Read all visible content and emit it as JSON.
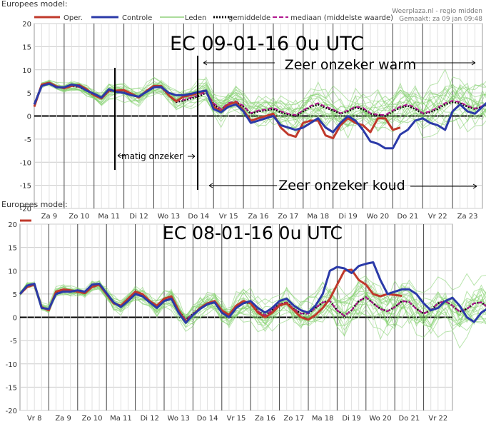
{
  "header": {
    "model_label": "Europees model:",
    "source": "Weerplaza.nl - regio midden",
    "made": "Gemaakt: za 09 jan 09:48"
  },
  "legend": [
    {
      "name": "Oper.",
      "color": "#c0392b",
      "style": "solid"
    },
    {
      "name": "Controle",
      "color": "#2b3aa8",
      "style": "solid"
    },
    {
      "name": "Leden",
      "color": "#8fd07a",
      "style": "thin"
    },
    {
      "name": "gemiddelde",
      "color": "#000000",
      "style": "dotted"
    },
    {
      "name": "mediaan (middelste waarde)",
      "color": "#b0188f",
      "style": "dashed"
    }
  ],
  "annotations": {
    "run_top": "EC 09-01-16 0u UTC",
    "run_bottom": "EC 08-01-16 0u UTC",
    "warm": "Zeer onzeker warm",
    "cold": "Zeer onzeker koud",
    "matig": "matig onzeker",
    "bottom_panel_label": "Europees model:"
  },
  "colors": {
    "oper": "#c0392b",
    "controle": "#2b3aa8",
    "leden": "#7fcf6a",
    "mean": "#000000",
    "median": "#b0188f",
    "grid": "#cccccc"
  },
  "chart_data": [
    {
      "type": "line",
      "title": "EC 09-01-16 0u UTC",
      "ylim": [
        -20,
        20
      ],
      "yticks": [
        20,
        15,
        10,
        5,
        0,
        -5,
        -10,
        -15,
        -20
      ],
      "x_labels": [
        "Za 9",
        "Zo 10",
        "Ma 11",
        "Di 12",
        "Wo 13",
        "Do 14",
        "Vr 15",
        "Za 16",
        "Zo 17",
        "Ma 18",
        "Di 19",
        "Wo 20",
        "Do 21",
        "Vr 22",
        "Za 23"
      ],
      "steps": 60,
      "series": [
        {
          "name": "Oper.",
          "values": [
            2,
            6.8,
            7.2,
            6.4,
            6,
            6.5,
            6.7,
            5.8,
            4.5,
            3.8,
            5.5,
            5.5,
            5.6,
            4.8,
            4,
            5.4,
            6.5,
            6.5,
            4.5,
            3.2,
            4.2,
            4.5,
            5,
            5.5,
            2,
            1,
            2.5,
            3,
            1.2,
            -1,
            -0.5,
            0,
            0.5,
            -2.5,
            -4,
            -4.5,
            -1.5,
            -1,
            -1,
            -4.2,
            -4.8,
            -2,
            -0.5,
            -1.5,
            -2,
            -3.5,
            -0.5,
            -0.5,
            -3,
            -2.5
          ]
        },
        {
          "name": "Controle",
          "values": [
            2.5,
            6.5,
            7,
            6.2,
            6.2,
            6.8,
            6.5,
            5.5,
            4.8,
            4,
            5.8,
            5.2,
            5,
            4.5,
            4.2,
            5.2,
            6.2,
            6.3,
            5,
            4.5,
            4.5,
            4.8,
            5.2,
            5.5,
            1.5,
            0.8,
            2,
            2.5,
            1,
            -1.5,
            -1,
            -0.5,
            0,
            -2,
            -2.5,
            -3,
            -2.5,
            -1.5,
            -0.5,
            -2.5,
            -3.5,
            -1.5,
            0,
            -1,
            -3,
            -5.5,
            -6,
            -7,
            -7,
            -4,
            -3,
            -1,
            -0.5,
            -1.5,
            -2,
            -3,
            1,
            2.5,
            1,
            0.5,
            2,
            3.5,
            2.5,
            1,
            2,
            4,
            5,
            4.5,
            2,
            0.5,
            1,
            2.5,
            3.5,
            1.5,
            -3.5,
            -5.5,
            -1,
            -1.2,
            -1,
            1.2,
            4,
            5.5,
            6,
            5,
            3,
            2,
            3,
            4.2,
            4,
            4.8,
            4,
            2
          ]
        },
        {
          "name": "gemiddelde",
          "values": [
            2.5,
            6.8,
            7.2,
            6.3,
            6,
            6.5,
            6.3,
            5.5,
            4.5,
            3.8,
            5.4,
            5.5,
            5.5,
            4.6,
            4,
            5.2,
            6.3,
            6.2,
            4.5,
            3,
            3.3,
            3.8,
            4.3,
            5,
            2.5,
            1.3,
            2.6,
            3,
            2,
            0.5,
            1,
            1.2,
            1.5,
            0.8,
            0.3,
            0,
            1,
            2,
            2.5,
            1.8,
            1.2,
            0.5,
            1,
            1.8,
            1.5,
            0.5,
            0.2,
            0,
            1,
            1.8,
            2.2,
            1.5,
            0.5,
            0.8,
            1.5,
            2.5,
            3,
            2.8,
            2,
            1.5,
            2,
            2.8,
            3,
            2.2,
            1.2,
            1.5,
            2.5,
            3.2,
            3.5,
            2.5,
            1.5,
            2,
            3,
            3.5,
            2.8,
            1.8,
            2.3,
            3.3,
            3.8,
            3.5,
            2.5,
            2,
            2.5,
            3.2,
            3.5,
            3,
            2.8,
            3.5,
            4.5,
            4.8
          ]
        },
        {
          "name": "mediaan (middelste waarde)",
          "values": [
            2.5,
            6.8,
            7.2,
            6.3,
            6,
            6.5,
            6.3,
            5.5,
            4.5,
            3.8,
            5.4,
            5.5,
            5.5,
            4.6,
            4,
            5.2,
            6.3,
            6.2,
            4.5,
            3.2,
            3.5,
            4,
            4.5,
            5.2,
            2.8,
            1.5,
            2.8,
            3.2,
            2.2,
            0.6,
            1.2,
            1.4,
            1.8,
            1,
            0.5,
            0.2,
            1.2,
            2.2,
            2.8,
            2,
            1.4,
            0.6,
            1.2,
            2,
            1.8,
            0.6,
            0.3,
            0.2,
            1.2,
            2,
            2.5,
            1.8,
            0.6,
            1,
            1.8,
            2.8,
            3.3,
            3,
            2.2,
            1.6,
            2.2,
            3,
            3.4,
            2.4,
            1.4,
            1.8,
            2.8,
            3.5,
            3.8,
            2.8,
            1.8,
            2.3,
            3.3,
            3.8,
            3,
            2,
            2.6,
            3.6,
            4.2,
            3.8,
            2.8,
            2.3,
            2.8,
            3.5,
            3.8,
            3.3,
            3.1,
            3.9,
            4.9,
            5.1
          ]
        }
      ]
    },
    {
      "type": "line",
      "title": "EC 08-01-16 0u UTC",
      "ylim": [
        -20,
        20
      ],
      "yticks": [
        20,
        15,
        10,
        5,
        0,
        -5,
        -10,
        -15,
        -20
      ],
      "x_labels": [
        "Vr 8",
        "Za 9",
        "Zo 10",
        "Ma 11",
        "Di 12",
        "Wo 13",
        "Do 14",
        "Vr 15",
        "Za 16",
        "Zo 17",
        "Ma 18",
        "Di 19",
        "Wo 20",
        "Do 21",
        "Vr 22"
      ],
      "steps": 60,
      "series": [
        {
          "name": "Oper.",
          "values": [
            5,
            6.5,
            7,
            2.2,
            1.5,
            5.5,
            6,
            5.8,
            5.5,
            5.2,
            6.5,
            7,
            5,
            3,
            2.5,
            4,
            5.5,
            5,
            3.5,
            2.5,
            4,
            4.5,
            1.5,
            -1,
            0.5,
            2,
            3,
            3.5,
            1.5,
            0.5,
            2.5,
            3.5,
            3,
            1,
            0,
            1,
            2.5,
            3,
            1.5,
            0,
            -0.5,
            0.5,
            2,
            4,
            7,
            10,
            10.2,
            8,
            7,
            5,
            4.5,
            5,
            4.8,
            4.6
          ]
        },
        {
          "name": "Controle",
          "values": [
            5,
            6.8,
            7.2,
            2,
            1.8,
            5,
            5.5,
            5.5,
            5.8,
            5.5,
            7,
            7.2,
            5.2,
            3.2,
            2.2,
            3.5,
            5,
            4.5,
            3.2,
            2,
            3.5,
            4,
            1,
            -1.2,
            0.5,
            1.8,
            2.8,
            3.2,
            1,
            0,
            2,
            3,
            3.5,
            2,
            1,
            2,
            3.5,
            4,
            2.5,
            1.5,
            1,
            2.5,
            5,
            10,
            10.8,
            10.5,
            9.5,
            11,
            11.5,
            11.8,
            8,
            5,
            5.5,
            6,
            6,
            5,
            3,
            1.5,
            2,
            3.5,
            4.2,
            2.5,
            0,
            -1,
            1,
            2,
            3,
            0,
            -3,
            -4,
            -1,
            0.5,
            1.5,
            0,
            -2.5,
            -3,
            -1,
            1.5,
            2,
            -0.5,
            -2
          ]
        },
        {
          "name": "gemiddelde",
          "values": [
            5,
            6.8,
            7,
            2.2,
            1.6,
            5.2,
            5.8,
            5.6,
            5.5,
            5.3,
            6.8,
            7,
            5,
            3,
            2.5,
            4,
            5.3,
            4.8,
            3.4,
            2.3,
            3.8,
            4.2,
            1.5,
            -0.6,
            0.7,
            2,
            3,
            3.3,
            1.5,
            0.3,
            2.2,
            3.2,
            3,
            1.3,
            0.4,
            1.5,
            2.8,
            3.2,
            1.8,
            0.8,
            0.8,
            2,
            3.2,
            3.5,
            1.5,
            0.3,
            1.5,
            3.5,
            4.3,
            3,
            1.8,
            1.3,
            2.2,
            3.5,
            3.3,
            1.8,
            0.8,
            1.5,
            3,
            3.5,
            2.5,
            1.2,
            1.8,
            3,
            3.2,
            2,
            0.8,
            1.5,
            3.5,
            4.5,
            3.5,
            2.2,
            2.8,
            4.2,
            4.8,
            3.8,
            2.8,
            3.8,
            5.2,
            5.5,
            4.5,
            3
          ]
        },
        {
          "name": "mediaan (middelste waarde)",
          "values": [
            5,
            6.8,
            7,
            2.2,
            1.6,
            5.2,
            5.8,
            5.6,
            5.5,
            5.3,
            6.8,
            7,
            5,
            3,
            2.5,
            4,
            5.3,
            4.8,
            3.4,
            2.3,
            3.8,
            4.2,
            1.5,
            -0.6,
            0.7,
            2,
            3,
            3.3,
            1.5,
            0.3,
            2.2,
            3.2,
            3,
            1.3,
            0.4,
            1.5,
            2.8,
            3.2,
            1.8,
            0.8,
            0.8,
            2,
            3.2,
            3.5,
            1.5,
            0.3,
            1.5,
            3.5,
            4.3,
            3,
            1.8,
            1.3,
            2.2,
            3.5,
            3.3,
            1.8,
            0.8,
            1.5,
            3,
            3.5,
            2.5,
            1.2,
            1.8,
            3,
            3.2,
            2,
            0.8,
            1.5,
            3.5,
            4.5,
            3.5,
            2.2,
            2.8,
            4.2,
            4.8,
            3.8,
            2.8,
            3.8,
            5.2,
            5.5,
            4.5,
            3
          ]
        }
      ]
    }
  ]
}
